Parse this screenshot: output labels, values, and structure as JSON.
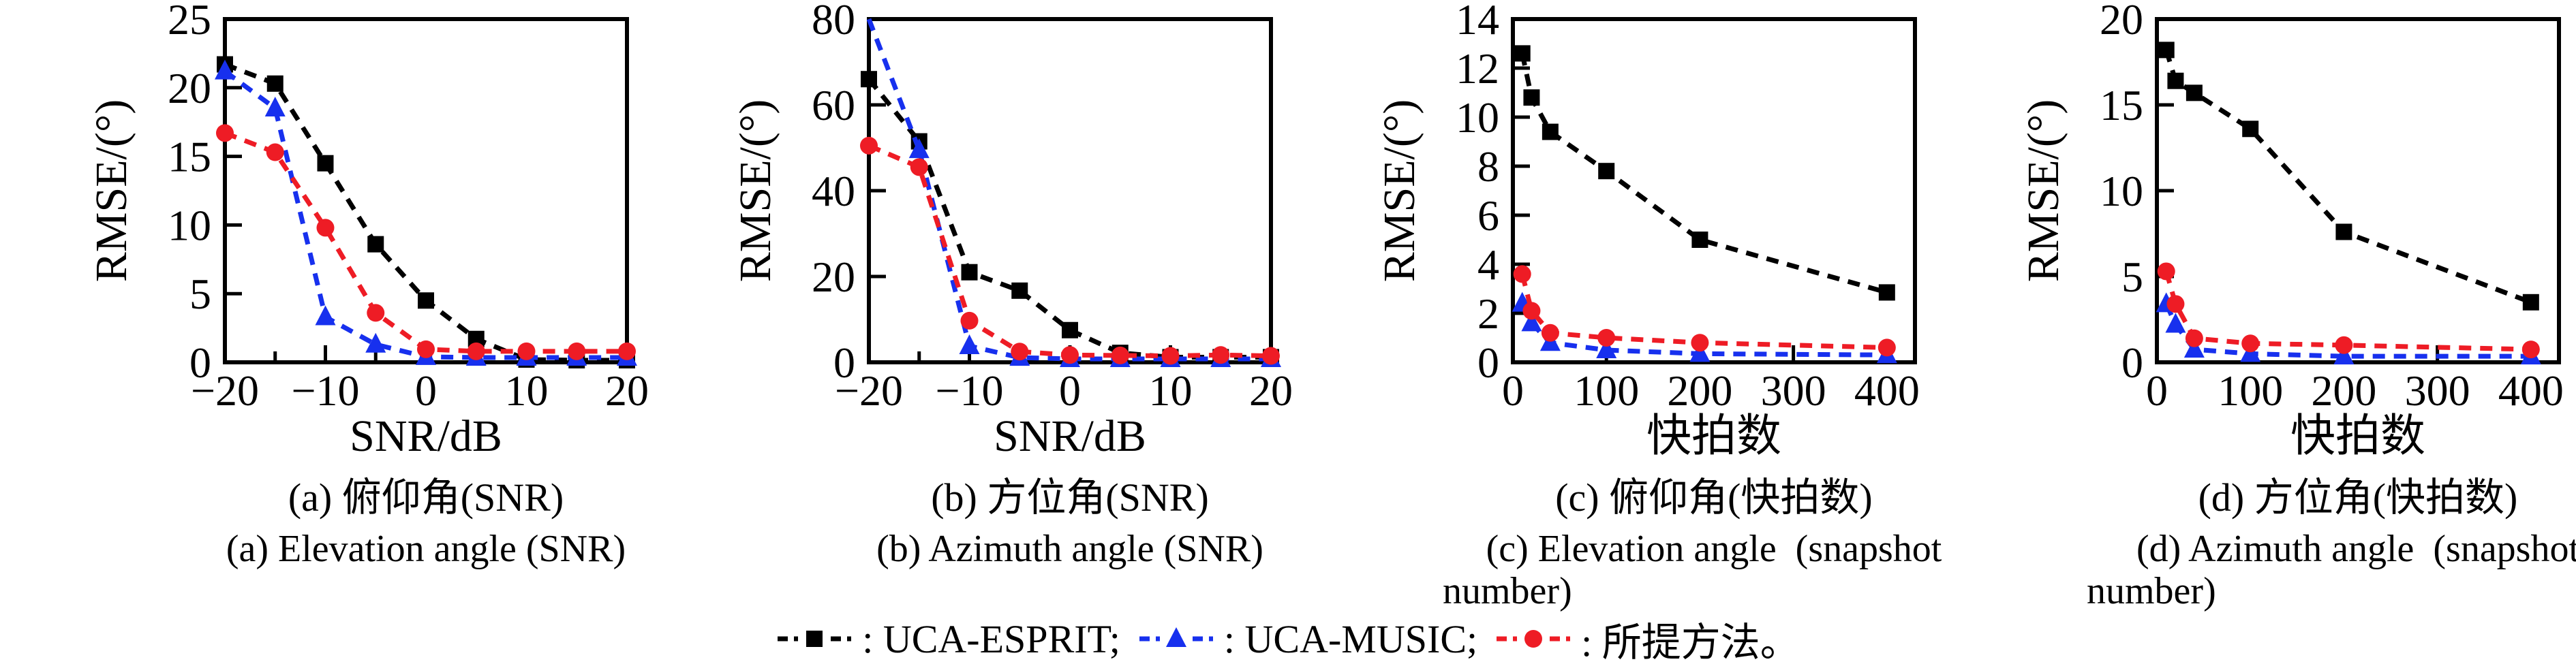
{
  "figure": {
    "background": "#ffffff",
    "text_color": "#000000"
  },
  "legend": {
    "items": [
      {
        "name": "UCA-ESPRIT",
        "marker": "square",
        "color": "#000000",
        "label": ": UCA-ESPRIT;"
      },
      {
        "name": "UCA-MUSIC",
        "marker": "triangle",
        "color": "#1730ee",
        "label": ": UCA-MUSIC;"
      },
      {
        "name": "所提方法",
        "marker": "circle",
        "color": "#ee1c25",
        "label": ": 所提方法。"
      }
    ]
  },
  "chart_data": [
    {
      "id": "a",
      "type": "line",
      "title_zh": "(a) 俯仰角(SNR)",
      "title_en_lines": [
        "(a) Elevation angle (SNR)"
      ],
      "xlabel": "SNR/dB",
      "ylabel": "RMSE/(°)",
      "xlim": [
        -20,
        20
      ],
      "ylim": [
        0,
        25
      ],
      "xticks": [
        -20,
        -10,
        0,
        10,
        20
      ],
      "xminorticks": [
        -15,
        -5,
        5,
        15
      ],
      "yticks": [
        0,
        5,
        10,
        15,
        20,
        25
      ],
      "grid": false,
      "legend_position": "figure-bottom",
      "x": [
        -20,
        -15,
        -10,
        -5,
        0,
        5,
        10,
        15,
        20
      ],
      "series": [
        {
          "name": "UCA-ESPRIT",
          "marker": "square",
          "color": "#000000",
          "values": [
            21.7,
            20.3,
            14.5,
            8.6,
            4.5,
            1.7,
            0.2,
            0.15,
            0.15
          ]
        },
        {
          "name": "UCA-MUSIC",
          "marker": "triangle",
          "color": "#1730ee",
          "values": [
            21.2,
            18.5,
            3.3,
            1.3,
            0.4,
            0.35,
            0.35,
            0.35,
            0.35
          ]
        },
        {
          "name": "所提方法",
          "marker": "circle",
          "color": "#ee1c25",
          "values": [
            16.7,
            15.3,
            9.8,
            3.6,
            0.95,
            0.8,
            0.8,
            0.8,
            0.8
          ]
        }
      ]
    },
    {
      "id": "b",
      "type": "line",
      "title_zh": "(b) 方位角(SNR)",
      "title_en_lines": [
        "(b) Azimuth angle (SNR)"
      ],
      "xlabel": "SNR/dB",
      "ylabel": "RMSE/(°)",
      "xlim": [
        -20,
        20
      ],
      "ylim": [
        0,
        80
      ],
      "xticks": [
        -20,
        -10,
        0,
        10,
        20
      ],
      "xminorticks": [
        -15,
        -5,
        5,
        15
      ],
      "yticks": [
        0,
        20,
        40,
        60,
        80
      ],
      "grid": false,
      "legend_position": "figure-bottom",
      "x": [
        -20,
        -15,
        -10,
        -5,
        0,
        5,
        10,
        15,
        20
      ],
      "series": [
        {
          "name": "UCA-ESPRIT",
          "marker": "square",
          "color": "#000000",
          "values": [
            66,
            51.5,
            21,
            16.7,
            7.5,
            2.2,
            1.2,
            1.2,
            1.2
          ]
        },
        {
          "name": "UCA-MUSIC",
          "marker": "triangle",
          "color": "#1730ee",
          "values": [
            80,
            49.5,
            3.8,
            1.1,
            0.8,
            0.8,
            0.8,
            0.8,
            0.8
          ]
        },
        {
          "name": "所提方法",
          "marker": "circle",
          "color": "#ee1c25",
          "values": [
            50.5,
            45.5,
            9.7,
            2.5,
            1.7,
            1.6,
            1.5,
            1.7,
            1.5
          ]
        }
      ]
    },
    {
      "id": "c",
      "type": "line",
      "title_zh": "(c) 俯仰角(快拍数)",
      "title_en_lines": [
        "(c) Elevation angle  (snapshot",
        "number)"
      ],
      "xlabel": "快拍数",
      "ylabel": "RMSE/(°)",
      "xlim": [
        0,
        430
      ],
      "ylim": [
        0,
        14
      ],
      "xticks": [
        0,
        100,
        200,
        300,
        400
      ],
      "xminorticks": [],
      "yticks": [
        0,
        2,
        4,
        6,
        8,
        10,
        12,
        14
      ],
      "grid": false,
      "legend_position": "figure-bottom",
      "x": [
        10,
        20,
        40,
        100,
        200,
        400
      ],
      "series": [
        {
          "name": "UCA-ESPRIT",
          "marker": "square",
          "color": "#000000",
          "values": [
            12.6,
            10.8,
            9.4,
            7.8,
            5.0,
            2.85
          ]
        },
        {
          "name": "UCA-MUSIC",
          "marker": "triangle",
          "color": "#1730ee",
          "values": [
            2.4,
            1.6,
            0.8,
            0.5,
            0.35,
            0.3
          ]
        },
        {
          "name": "所提方法",
          "marker": "circle",
          "color": "#ee1c25",
          "values": [
            3.6,
            2.1,
            1.2,
            1.0,
            0.8,
            0.6
          ]
        }
      ]
    },
    {
      "id": "d",
      "type": "line",
      "title_zh": "(d) 方位角(快拍数)",
      "title_en_lines": [
        "(d) Azimuth angle  (snapshot",
        "number)"
      ],
      "xlabel": "快拍数",
      "ylabel": "RMSE/(°)",
      "xlim": [
        0,
        430
      ],
      "ylim": [
        0,
        20
      ],
      "xticks": [
        0,
        100,
        200,
        300,
        400
      ],
      "xminorticks": [],
      "yticks": [
        0,
        5,
        10,
        15,
        20
      ],
      "grid": false,
      "legend_position": "figure-bottom",
      "x": [
        10,
        20,
        40,
        100,
        200,
        400
      ],
      "series": [
        {
          "name": "UCA-ESPRIT",
          "marker": "square",
          "color": "#000000",
          "values": [
            18.2,
            16.4,
            15.7,
            13.6,
            7.6,
            3.5
          ]
        },
        {
          "name": "UCA-MUSIC",
          "marker": "triangle",
          "color": "#1730ee",
          "values": [
            3.4,
            2.2,
            0.75,
            0.5,
            0.35,
            0.35
          ]
        },
        {
          "name": "所提方法",
          "marker": "circle",
          "color": "#ee1c25",
          "values": [
            5.3,
            3.4,
            1.4,
            1.1,
            1.0,
            0.75
          ]
        }
      ]
    }
  ]
}
